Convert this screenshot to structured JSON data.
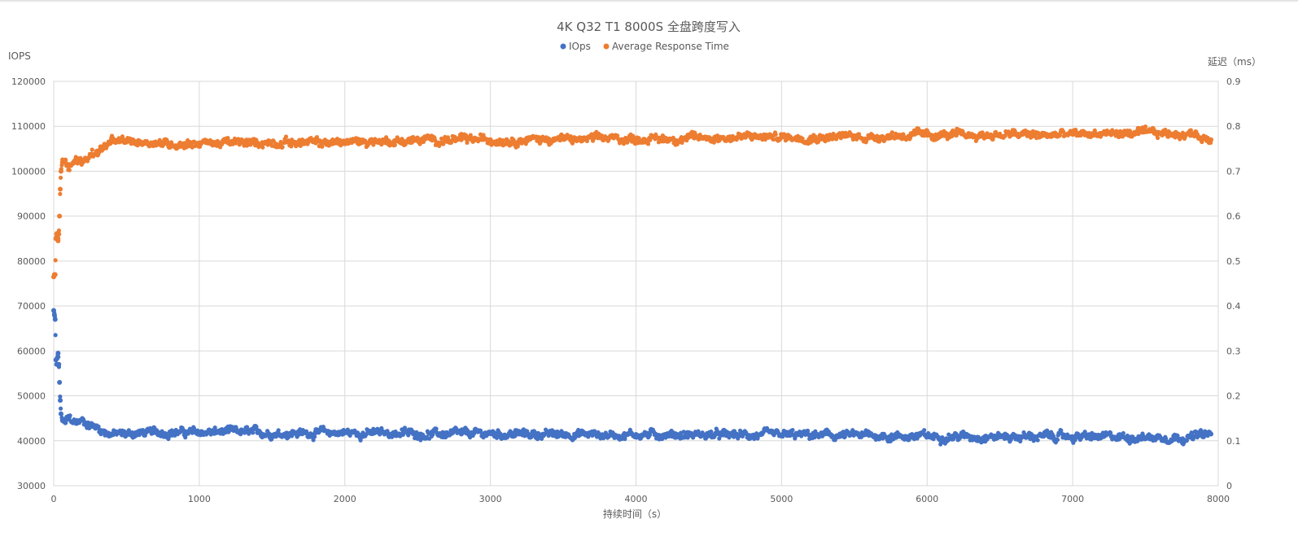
{
  "chart_data": {
    "type": "scatter",
    "title": "4K Q32 T1 8000S 全盘跨度写入",
    "xlabel": "持续时间（s）",
    "ylabel_left": "IOPS",
    "ylabel_right": "延迟（ms）",
    "xlim": [
      0,
      8000
    ],
    "ylim_left": [
      30000,
      120000
    ],
    "ylim_right": [
      0,
      0.9
    ],
    "x_ticks": [
      "0",
      "1000",
      "2000",
      "3000",
      "4000",
      "5000",
      "6000",
      "7000",
      "8000"
    ],
    "y_left_ticks": [
      "30000",
      "40000",
      "50000",
      "60000",
      "70000",
      "80000",
      "90000",
      "100000",
      "110000",
      "120000"
    ],
    "y_right_ticks": [
      "0",
      "0.1",
      "0.2",
      "0.3",
      "0.4",
      "0.5",
      "0.6",
      "0.7",
      "0.8",
      "0.9"
    ],
    "grid": true,
    "legend_position": "top-center",
    "series": [
      {
        "name": "IOps",
        "axis": "left",
        "color": "#4472C4",
        "x": [
          0,
          5,
          10,
          15,
          20,
          25,
          30,
          35,
          40,
          45,
          50,
          60,
          80,
          100,
          150,
          200,
          250,
          300,
          350,
          400,
          500,
          600,
          700,
          800,
          900,
          1000,
          1200,
          1400,
          1600,
          1800,
          2000,
          2200,
          2400,
          2600,
          2800,
          3000,
          3200,
          3400,
          3600,
          3800,
          4000,
          4200,
          4400,
          4600,
          4800,
          5000,
          5200,
          5400,
          5600,
          5800,
          6000,
          6200,
          6400,
          6600,
          6800,
          7000,
          7200,
          7400,
          7600,
          7800,
          7950
        ],
        "y": [
          69000,
          68000,
          67000,
          58000,
          57000,
          58500,
          59500,
          57000,
          53000,
          49000,
          46000,
          44500,
          44000,
          45000,
          44000,
          44500,
          43500,
          43000,
          42000,
          41500,
          41500,
          41800,
          41800,
          42000,
          41800,
          41800,
          42000,
          41800,
          41700,
          41800,
          41800,
          41700,
          41700,
          41500,
          41500,
          41600,
          41500,
          41400,
          41500,
          41300,
          41400,
          41400,
          41300,
          41300,
          41200,
          41200,
          41200,
          41100,
          41200,
          41000,
          41000,
          41000,
          41000,
          40900,
          41000,
          40900,
          40800,
          40800,
          40800,
          40800,
          41500
        ]
      },
      {
        "name": "Average Response Time",
        "axis": "right",
        "color": "#ED7D31",
        "x": [
          0,
          5,
          10,
          15,
          20,
          25,
          30,
          35,
          40,
          45,
          50,
          60,
          80,
          100,
          150,
          200,
          250,
          300,
          350,
          400,
          500,
          600,
          700,
          800,
          900,
          1000,
          1200,
          1400,
          1600,
          1800,
          2000,
          2200,
          2400,
          2600,
          2800,
          3000,
          3200,
          3400,
          3600,
          3800,
          4000,
          4200,
          4400,
          4600,
          4800,
          5000,
          5200,
          5400,
          5600,
          5800,
          6000,
          6200,
          6400,
          6600,
          6800,
          7000,
          7200,
          7400,
          7600,
          7800,
          7950
        ],
        "y": [
          0.465,
          0.47,
          0.47,
          0.55,
          0.56,
          0.555,
          0.545,
          0.56,
          0.6,
          0.66,
          0.7,
          0.72,
          0.725,
          0.715,
          0.725,
          0.72,
          0.735,
          0.745,
          0.755,
          0.765,
          0.765,
          0.765,
          0.765,
          0.76,
          0.762,
          0.763,
          0.763,
          0.763,
          0.765,
          0.763,
          0.765,
          0.767,
          0.767,
          0.77,
          0.77,
          0.77,
          0.77,
          0.772,
          0.77,
          0.773,
          0.772,
          0.772,
          0.774,
          0.775,
          0.776,
          0.776,
          0.776,
          0.778,
          0.776,
          0.78,
          0.78,
          0.78,
          0.78,
          0.782,
          0.78,
          0.782,
          0.784,
          0.784,
          0.784,
          0.784,
          0.77
        ]
      }
    ]
  }
}
